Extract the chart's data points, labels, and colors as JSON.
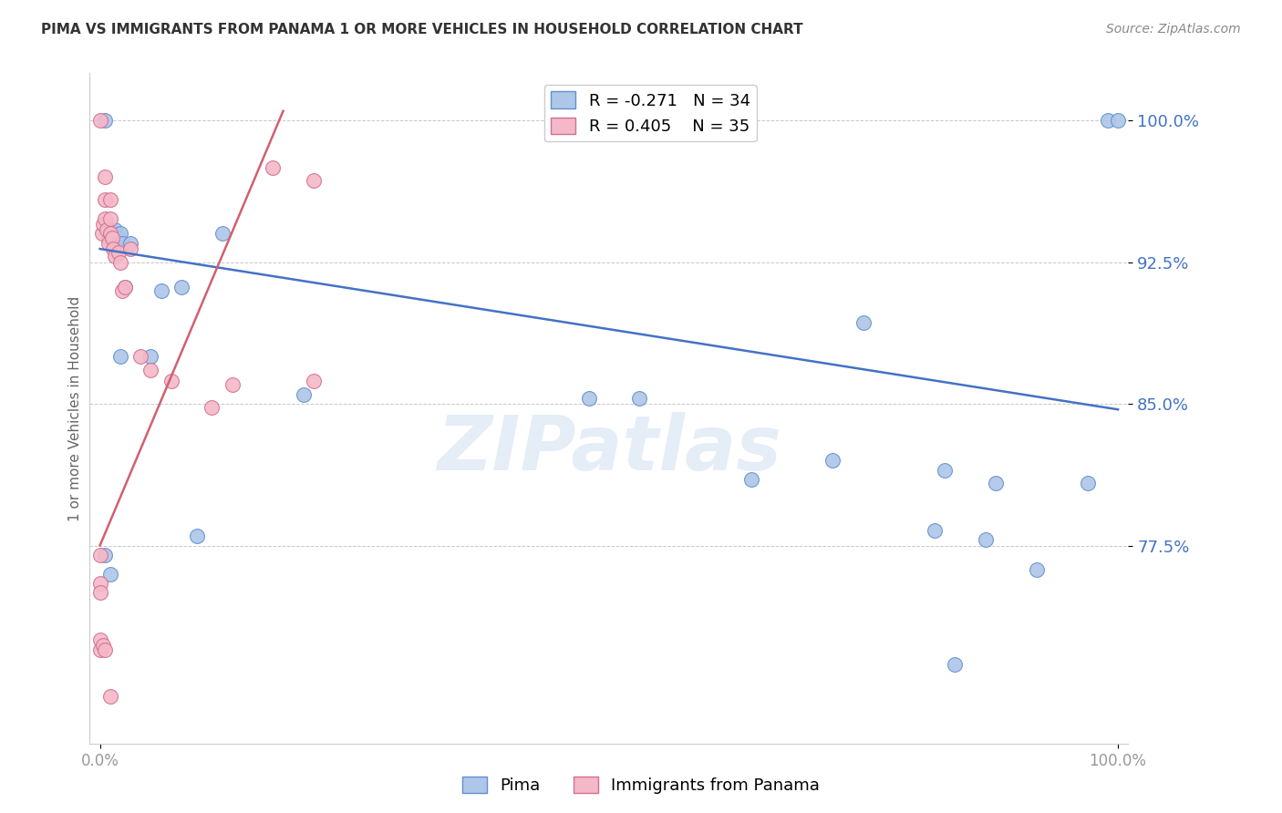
{
  "title": "PIMA VS IMMIGRANTS FROM PANAMA 1 OR MORE VEHICLES IN HOUSEHOLD CORRELATION CHART",
  "source": "Source: ZipAtlas.com",
  "ylabel": "1 or more Vehicles in Household",
  "watermark": "ZIPatlas",
  "blue_label": "Pima",
  "pink_label": "Immigrants from Panama",
  "blue_R": -0.271,
  "blue_N": 34,
  "pink_R": 0.405,
  "pink_N": 35,
  "blue_color": "#aec6e8",
  "pink_color": "#f5b8c8",
  "blue_edge_color": "#6090d0",
  "pink_edge_color": "#d07090",
  "blue_line_color": "#4472c4",
  "pink_line_color": "#d06070",
  "xlim": [
    -0.01,
    1.01
  ],
  "ylim": [
    0.67,
    1.025
  ],
  "yticks": [
    0.775,
    0.85,
    0.925,
    1.0
  ],
  "ytick_labels": [
    "77.5%",
    "85.0%",
    "92.5%",
    "100.0%"
  ],
  "xtick_positions": [
    0.0,
    1.0
  ],
  "xtick_labels": [
    "0.0%",
    "100.0%"
  ],
  "blue_x": [
    0.005,
    0.008,
    0.01,
    0.012,
    0.015,
    0.015,
    0.018,
    0.02,
    0.022,
    0.025,
    0.03,
    0.05,
    0.06,
    0.08,
    0.12,
    0.2,
    0.48,
    0.53,
    0.64,
    0.72,
    0.75,
    0.82,
    0.83,
    0.87,
    0.88,
    0.92,
    0.97,
    0.99,
    1.0,
    0.005,
    0.01,
    0.02,
    0.095,
    0.84
  ],
  "blue_y": [
    1.0,
    0.938,
    0.942,
    0.938,
    0.942,
    0.935,
    0.938,
    0.94,
    0.935,
    0.912,
    0.935,
    0.875,
    0.91,
    0.912,
    0.94,
    0.855,
    0.853,
    0.853,
    0.81,
    0.82,
    0.893,
    0.783,
    0.815,
    0.778,
    0.808,
    0.762,
    0.808,
    1.0,
    1.0,
    0.77,
    0.76,
    0.875,
    0.78,
    0.712
  ],
  "pink_x": [
    0.0,
    0.0,
    0.0,
    0.0,
    0.002,
    0.003,
    0.005,
    0.005,
    0.005,
    0.007,
    0.008,
    0.01,
    0.01,
    0.01,
    0.012,
    0.013,
    0.015,
    0.018,
    0.02,
    0.022,
    0.025,
    0.03,
    0.04,
    0.05,
    0.07,
    0.11,
    0.13,
    0.17,
    0.21,
    0.0,
    0.0,
    0.003,
    0.005,
    0.01,
    0.21
  ],
  "pink_y": [
    1.0,
    0.77,
    0.755,
    0.725,
    0.94,
    0.945,
    0.958,
    0.97,
    0.948,
    0.942,
    0.935,
    0.958,
    0.948,
    0.94,
    0.938,
    0.932,
    0.928,
    0.93,
    0.925,
    0.91,
    0.912,
    0.932,
    0.875,
    0.868,
    0.862,
    0.848,
    0.86,
    0.975,
    0.968,
    0.75,
    0.72,
    0.722,
    0.72,
    0.695,
    0.862
  ],
  "blue_trendline_x": [
    0.0,
    1.0
  ],
  "blue_trendline_y": [
    0.932,
    0.847
  ],
  "pink_trendline_x": [
    0.0,
    0.18
  ],
  "pink_trendline_y": [
    0.775,
    1.005
  ],
  "tick_color": "#4472c4",
  "right_tick_color": "#4472c4",
  "background_color": "#ffffff",
  "grid_color": "#c8c8c8"
}
